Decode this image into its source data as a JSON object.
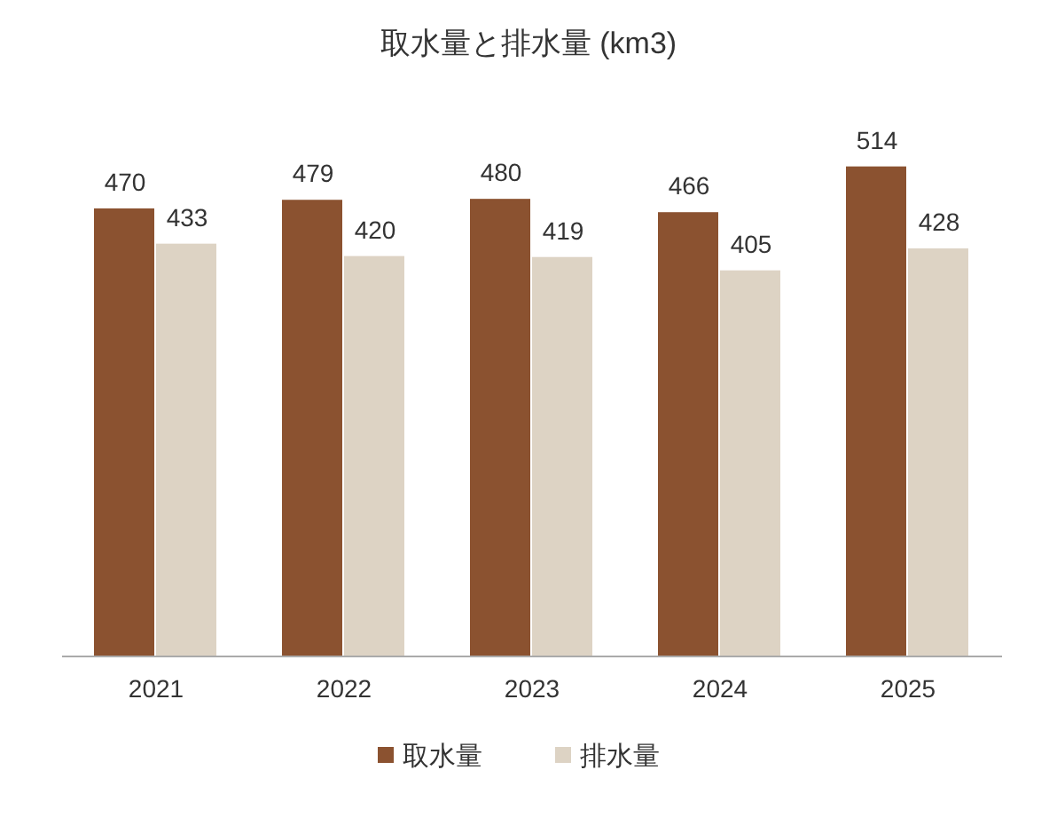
{
  "chart_data": {
    "type": "bar",
    "title": "取水量と排水量 (km3)",
    "categories": [
      "2021",
      "2022",
      "2023",
      "2024",
      "2025"
    ],
    "series": [
      {
        "name": "取水量",
        "color": "#8b5230",
        "values": [
          470,
          479,
          480,
          466,
          514
        ]
      },
      {
        "name": "排水量",
        "color": "#ddd3c4",
        "values": [
          433,
          420,
          419,
          405,
          428
        ]
      }
    ],
    "data_labels": true,
    "legend": "bottom"
  }
}
